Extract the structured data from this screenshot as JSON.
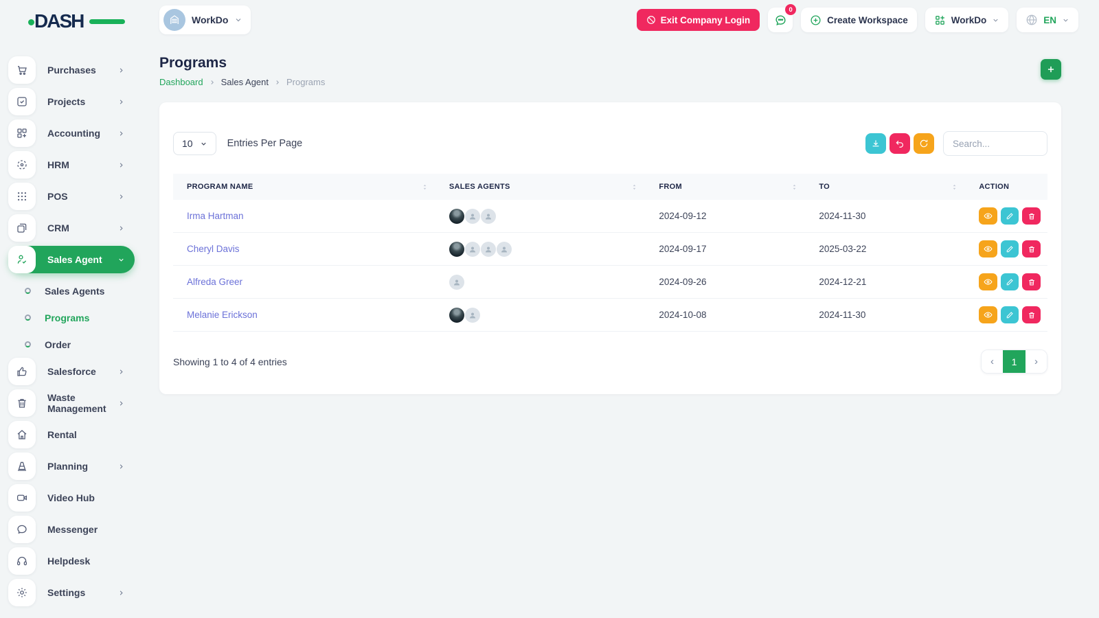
{
  "brand": {
    "name": "DASH"
  },
  "header": {
    "workspace_label": "WorkDo",
    "exit_button": "Exit Company Login",
    "messages_badge": "0",
    "create_workspace": "Create Workspace",
    "workdo_menu": "WorkDo",
    "language": "EN"
  },
  "sidebar": {
    "items": [
      {
        "label": "Purchases"
      },
      {
        "label": "Projects"
      },
      {
        "label": "Accounting"
      },
      {
        "label": "HRM"
      },
      {
        "label": "POS"
      },
      {
        "label": "CRM"
      },
      {
        "label": "Sales Agent"
      },
      {
        "label": "Salesforce"
      },
      {
        "label": "Waste Management"
      },
      {
        "label": "Rental"
      },
      {
        "label": "Planning"
      },
      {
        "label": "Video Hub"
      },
      {
        "label": "Messenger"
      },
      {
        "label": "Helpdesk"
      },
      {
        "label": "Settings"
      }
    ],
    "sub_items": [
      {
        "label": "Sales Agents"
      },
      {
        "label": "Programs"
      },
      {
        "label": "Order"
      }
    ]
  },
  "page": {
    "title": "Programs",
    "breadcrumb": [
      "Dashboard",
      "Sales Agent",
      "Programs"
    ]
  },
  "toolbar": {
    "entries_value": "10",
    "entries_label": "Entries Per Page",
    "search_placeholder": "Search..."
  },
  "table": {
    "columns": [
      "PROGRAM NAME",
      "SALES AGENTS",
      "FROM",
      "TO",
      "ACTION"
    ],
    "rows": [
      {
        "name": "Irma Hartman",
        "avatars": [
          "photo",
          "placeholder",
          "placeholder"
        ],
        "from": "2024-09-12",
        "to": "2024-11-30"
      },
      {
        "name": "Cheryl Davis",
        "avatars": [
          "photo",
          "placeholder",
          "placeholder",
          "placeholder"
        ],
        "from": "2024-09-17",
        "to": "2025-03-22"
      },
      {
        "name": "Alfreda Greer",
        "avatars": [
          "placeholder"
        ],
        "from": "2024-09-26",
        "to": "2024-12-21"
      },
      {
        "name": "Melanie Erickson",
        "avatars": [
          "photo",
          "placeholder"
        ],
        "from": "2024-10-08",
        "to": "2024-11-30"
      }
    ],
    "footer_text": "Showing 1 to 4 of 4 entries",
    "pagination": {
      "prev": "‹",
      "current": "1",
      "next": "›"
    }
  },
  "colors": {
    "primary_green": "#21a55b",
    "pink": "#f0285f",
    "teal": "#3cc5d3",
    "orange": "#f6a41b",
    "link_purple": "#6b71d8"
  }
}
